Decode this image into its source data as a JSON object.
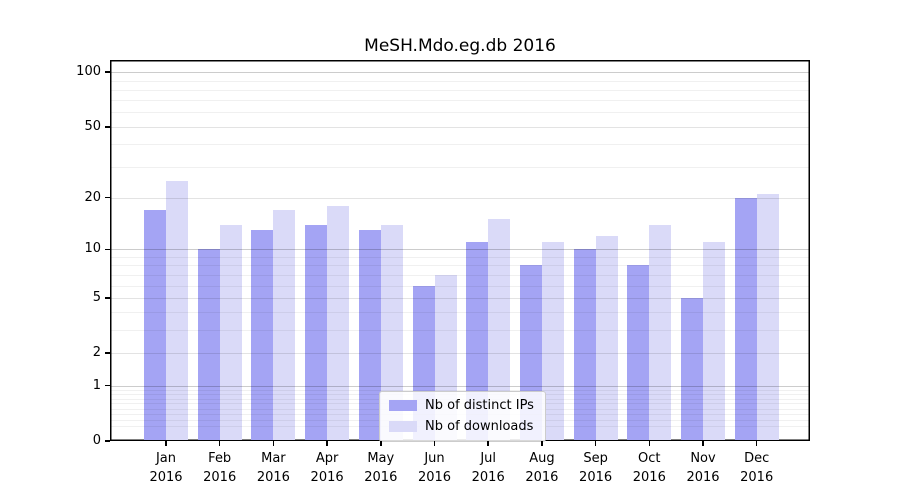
{
  "chart_data": {
    "type": "bar",
    "title": "MeSH.Mdo.eg.db 2016",
    "months": [
      "Jan",
      "Feb",
      "Mar",
      "Apr",
      "May",
      "Jun",
      "Jul",
      "Aug",
      "Sep",
      "Oct",
      "Nov",
      "Dec"
    ],
    "year": "2016",
    "categories": [
      "Jan 2016",
      "Feb 2016",
      "Mar 2016",
      "Apr 2016",
      "May 2016",
      "Jun 2016",
      "Jul 2016",
      "Aug 2016",
      "Sep 2016",
      "Oct 2016",
      "Nov 2016",
      "Dec 2016"
    ],
    "series": [
      {
        "name": "Nb of distinct IPs",
        "color": "#a4a4f4",
        "values": [
          17,
          10,
          13,
          14,
          13,
          6,
          11,
          8,
          10,
          8,
          5,
          20
        ]
      },
      {
        "name": "Nb of downloads",
        "color": "#dadaf8",
        "values": [
          25,
          14,
          17,
          18,
          14,
          7,
          15,
          11,
          12,
          14,
          11,
          21
        ]
      }
    ],
    "ylabel": "",
    "xlabel": "",
    "y_scale": "log10(value+1)",
    "ylim": [
      0,
      114
    ],
    "y_tick_values": [
      100,
      50,
      20,
      10,
      5,
      2,
      1,
      0
    ],
    "y_gridlines_major": [
      1,
      10,
      100
    ],
    "y_gridlines_mid": [
      2,
      5,
      20,
      50
    ],
    "y_gridlines_minor": [
      0.2,
      0.3,
      0.4,
      0.5,
      0.6,
      0.7,
      0.8,
      0.9,
      3,
      4,
      6,
      7,
      8,
      9,
      30,
      40,
      60,
      70,
      80,
      90
    ],
    "grid": true,
    "legend_position": "bottom-center"
  }
}
